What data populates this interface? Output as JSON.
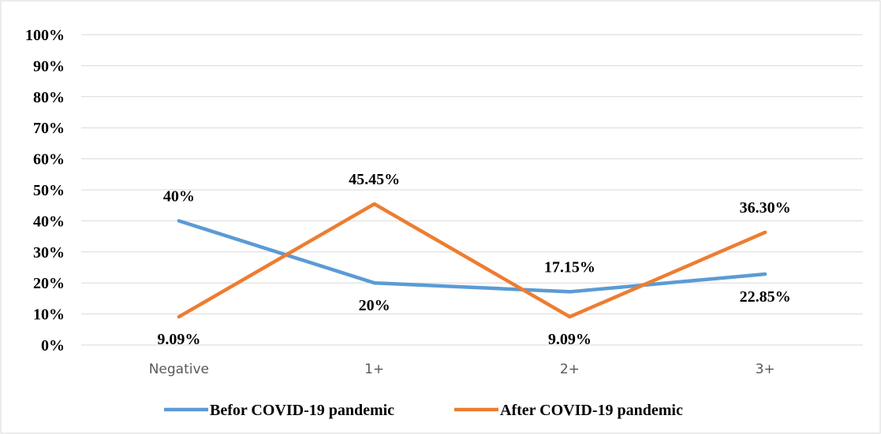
{
  "chart_data": {
    "type": "line",
    "title": "",
    "xlabel": "",
    "ylabel": "",
    "categories": [
      "Negative",
      "1+",
      "2+",
      "3+"
    ],
    "ylim": [
      0,
      100
    ],
    "yticks": [
      "0%",
      "10%",
      "20%",
      "30%",
      "40%",
      "50%",
      "60%",
      "70%",
      "80%",
      "90%",
      "100%"
    ],
    "grid": true,
    "legend_position": "bottom",
    "series": [
      {
        "name": "Befor COVID-19 pandemic",
        "color": "#5B9BD5",
        "values": [
          40,
          20,
          17.15,
          22.85
        ],
        "labels": [
          "40%",
          "20%",
          "17.15%",
          "22.85%"
        ]
      },
      {
        "name": "After COVID-19 pandemic",
        "color": "#ED7D31",
        "values": [
          9.09,
          45.45,
          9.09,
          36.3
        ],
        "labels": [
          "9.09%",
          "45.45%",
          "9.09%",
          "36.30%"
        ]
      }
    ]
  }
}
